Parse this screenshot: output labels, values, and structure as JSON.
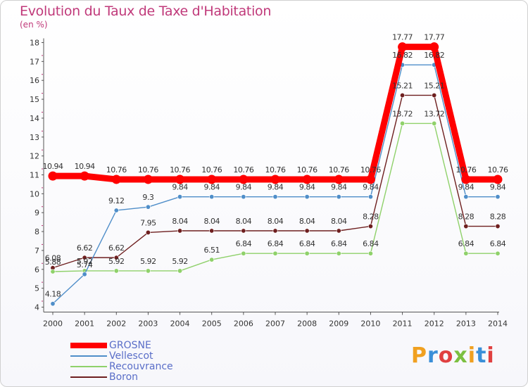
{
  "header": {
    "title": "Evolution du Taux de Taxe d'Habitation",
    "subtitle": "(en %)"
  },
  "brand": {
    "name": "Proxiti"
  },
  "colors": {
    "title": "#c0397a",
    "axis_text": "#333333",
    "legend_text": "#5a6ec8"
  },
  "chart_data": {
    "type": "line",
    "title": "Evolution du Taux de Taxe d'Habitation",
    "ylabel": "(en %)",
    "xlabel": "",
    "x": [
      "2000",
      "2001",
      "2002",
      "2003",
      "2004",
      "2005",
      "2006",
      "2007",
      "2008",
      "2009",
      "2010",
      "2011",
      "2012",
      "2013",
      "2014"
    ],
    "ylim": [
      4,
      18
    ],
    "yticks": [
      4,
      5,
      6,
      7,
      8,
      9,
      10,
      11,
      12,
      13,
      14,
      15,
      16,
      17,
      18
    ],
    "grid": false,
    "legend_position": "bottom-left",
    "series": [
      {
        "name": "GROSNE",
        "color": "#ff0000",
        "emphasis": true,
        "values": [
          10.94,
          10.94,
          10.76,
          10.76,
          10.76,
          10.76,
          10.76,
          10.76,
          10.76,
          10.76,
          10.76,
          17.77,
          17.77,
          10.76,
          10.76
        ]
      },
      {
        "name": "Vellescot",
        "color": "#4f8ec9",
        "values": [
          4.18,
          5.74,
          9.12,
          9.3,
          9.84,
          9.84,
          9.84,
          9.84,
          9.84,
          9.84,
          9.84,
          16.82,
          16.82,
          9.84,
          9.84
        ]
      },
      {
        "name": "Recouvrance",
        "color": "#8fd16a",
        "values": [
          5.88,
          5.92,
          5.92,
          5.92,
          5.92,
          6.51,
          6.84,
          6.84,
          6.84,
          6.84,
          6.84,
          13.72,
          13.72,
          6.84,
          6.84
        ]
      },
      {
        "name": "Boron",
        "color": "#6e1f1f",
        "values": [
          6.08,
          6.62,
          6.62,
          7.95,
          8.04,
          8.04,
          8.04,
          8.04,
          8.04,
          8.04,
          8.28,
          15.21,
          15.21,
          8.28,
          8.28
        ]
      }
    ]
  }
}
